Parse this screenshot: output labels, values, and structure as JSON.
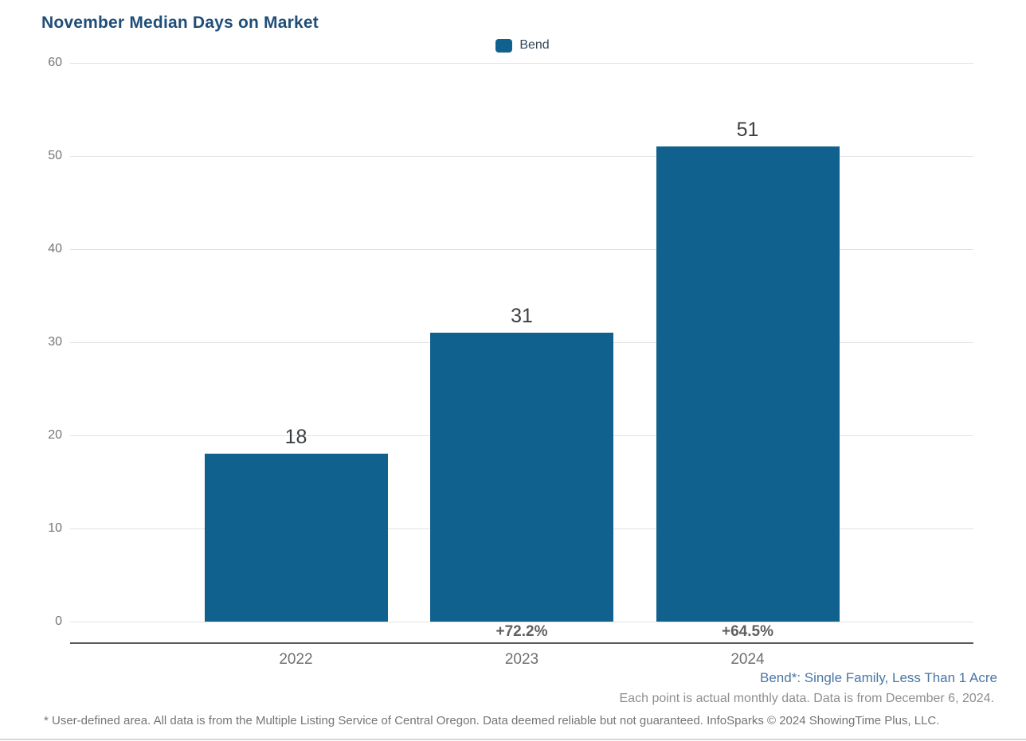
{
  "title": "November Median Days on Market",
  "legend": {
    "label": "Bend",
    "swatch_color": "#11618e"
  },
  "chart_data": {
    "type": "bar",
    "title": "November Median Days on Market",
    "categories": [
      "2022",
      "2023",
      "2024"
    ],
    "series": [
      {
        "name": "Bend",
        "values": [
          18,
          31,
          51
        ]
      }
    ],
    "bar_labels": [
      "18",
      "31",
      "51"
    ],
    "pct_change_labels": [
      "",
      "+72.2%",
      "+64.5%"
    ],
    "xlabel": "",
    "ylabel": "",
    "ylim": [
      0,
      60
    ],
    "yticks": [
      0,
      10,
      20,
      30,
      40,
      50,
      60
    ],
    "grid": true,
    "legend_position": "top-center",
    "bar_color": "#11618e"
  },
  "footnotes": {
    "series_definition": "Bend*: Single Family, Less Than 1 Acre",
    "data_note": "Each point is actual monthly data. Data is from December 6, 2024.",
    "disclaimer": "* User-defined area. All data is from the Multiple Listing Service of Central Oregon. Data deemed reliable but not guaranteed. InfoSparks © 2024 ShowingTime Plus, LLC."
  },
  "colors": {
    "title": "#1f4e79",
    "bar": "#11618e",
    "grid_line": "#e2e2e2",
    "axis_line": "#5c5c5c",
    "tick_label": "#757575",
    "value_label": "#3d4043",
    "pct_label": "#606060",
    "footnote_blue": "#4a76a4",
    "footnote_gray": "#8f8f8f"
  }
}
